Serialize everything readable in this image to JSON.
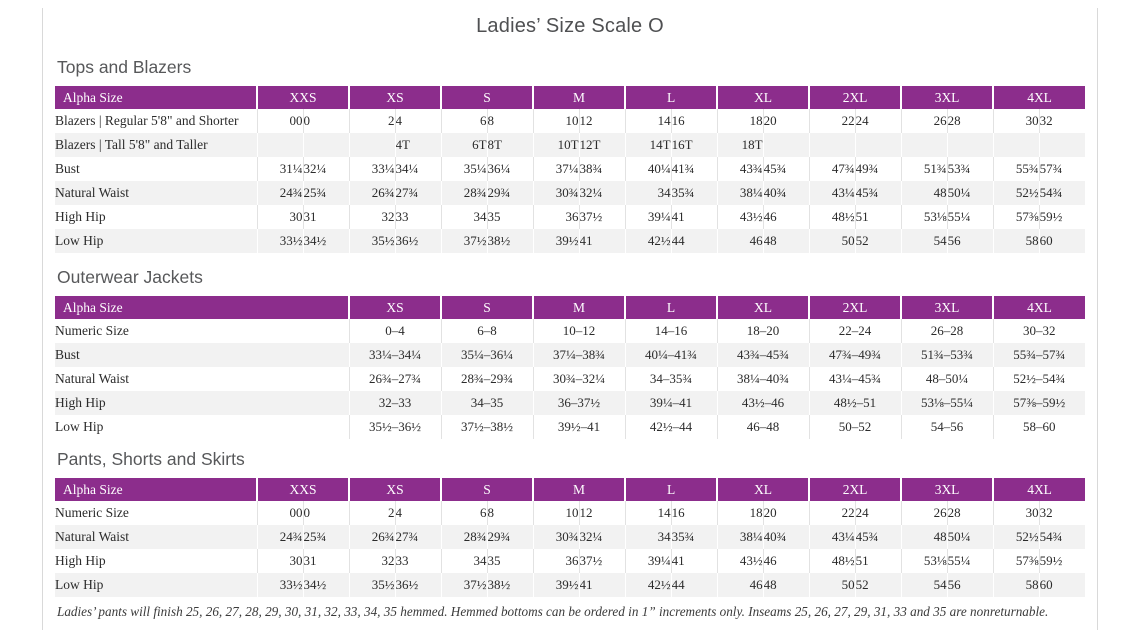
{
  "page": {
    "title": "Ladies’ Size Scale O",
    "footnote": "Ladies’ pants will finish 25, 26, 27, 28, 29, 30, 31, 32, 33, 34, 35 hemmed. Hemmed bottoms can be ordered in 1” increments only. Inseams 25, 26, 27, 29, 31, 33 and 35 are nonreturnable."
  },
  "colors": {
    "header_purple": "#8c2d8c",
    "row_stripe": "#f2f2f2",
    "heading_gray": "#57585a"
  },
  "tables": [
    {
      "heading": "Tops and Blazers",
      "type": "paired",
      "label_header": "Alpha Size",
      "sizes": [
        "XXS",
        "XS",
        "S",
        "M",
        "L",
        "XL",
        "2XL",
        "3XL",
        "4XL"
      ],
      "rows": [
        {
          "label": "Blazers  |  Regular 5'8\" and Shorter",
          "values": [
            "00",
            "0",
            "2",
            "4",
            "6",
            "8",
            "10",
            "12",
            "14",
            "16",
            "18",
            "20",
            "22",
            "24",
            "26",
            "28",
            "30",
            "32"
          ]
        },
        {
          "label": "Blazers  |  Tall 5'8\" and Taller",
          "values": [
            "",
            "",
            "",
            "4T",
            "6T",
            "8T",
            "10T",
            "12T",
            "14T",
            "16T",
            "18T",
            "",
            "",
            "",
            "",
            "",
            "",
            ""
          ]
        },
        {
          "label": "Bust",
          "values": [
            "31¼",
            "32¼",
            "33¼",
            "34¼",
            "35¼",
            "36¼",
            "37¼",
            "38¾",
            "40¼",
            "41¾",
            "43¾",
            "45¾",
            "47¾",
            "49¾",
            "51¾",
            "53¾",
            "55¾",
            "57¾"
          ]
        },
        {
          "label": "Natural Waist",
          "values": [
            "24¾",
            "25¾",
            "26¾",
            "27¾",
            "28¾",
            "29¾",
            "30¾",
            "32¼",
            "34",
            "35¾",
            "38¼",
            "40¾",
            "43¼",
            "45¾",
            "48",
            "50¼",
            "52½",
            "54¾"
          ]
        },
        {
          "label": "High Hip",
          "values": [
            "30",
            "31",
            "32",
            "33",
            "34",
            "35",
            "36",
            "37½",
            "39¼",
            "41",
            "43½",
            "46",
            "48½",
            "51",
            "53⅛",
            "55¼",
            "57⅜",
            "59½"
          ]
        },
        {
          "label": "Low Hip",
          "values": [
            "33½",
            "34½",
            "35½",
            "36½",
            "37½",
            "38½",
            "39½",
            "41",
            "42½",
            "44",
            "46",
            "48",
            "50",
            "52",
            "54",
            "56",
            "58",
            "60"
          ]
        }
      ]
    },
    {
      "heading": "Outerwear Jackets",
      "type": "single",
      "label_header": "Alpha Size",
      "sizes": [
        "XS",
        "S",
        "M",
        "L",
        "XL",
        "2XL",
        "3XL",
        "4XL"
      ],
      "rows": [
        {
          "label": "Numeric Size",
          "values": [
            "0–4",
            "6–8",
            "10–12",
            "14–16",
            "18–20",
            "22–24",
            "26–28",
            "30–32"
          ]
        },
        {
          "label": "Bust",
          "values": [
            "33¼–34¼",
            "35¼–36¼",
            "37¼–38¾",
            "40¼–41¾",
            "43¾–45¾",
            "47¾–49¾",
            "51¾–53¾",
            "55¾–57¾"
          ]
        },
        {
          "label": "Natural Waist",
          "values": [
            "26¾–27¾",
            "28¾–29¾",
            "30¾–32¼",
            "34–35¾",
            "38¼–40¾",
            "43¼–45¾",
            "48–50¼",
            "52½–54¾"
          ]
        },
        {
          "label": "High Hip",
          "values": [
            "32–33",
            "34–35",
            "36–37½",
            "39¼–41",
            "43½–46",
            "48½–51",
            "53⅛–55¼",
            "57⅜–59½"
          ]
        },
        {
          "label": "Low Hip",
          "values": [
            "35½–36½",
            "37½–38½",
            "39½–41",
            "42½–44",
            "46–48",
            "50–52",
            "54–56",
            "58–60"
          ]
        }
      ]
    },
    {
      "heading": "Pants, Shorts and Skirts",
      "type": "paired",
      "label_header": "Alpha Size",
      "sizes": [
        "XXS",
        "XS",
        "S",
        "M",
        "L",
        "XL",
        "2XL",
        "3XL",
        "4XL"
      ],
      "rows": [
        {
          "label": "Numeric Size",
          "values": [
            "00",
            "0",
            "2",
            "4",
            "6",
            "8",
            "10",
            "12",
            "14",
            "16",
            "18",
            "20",
            "22",
            "24",
            "26",
            "28",
            "30",
            "32"
          ]
        },
        {
          "label": "Natural Waist",
          "values": [
            "24¾",
            "25¾",
            "26¾",
            "27¾",
            "28¾",
            "29¾",
            "30¾",
            "32¼",
            "34",
            "35¾",
            "38¼",
            "40¾",
            "43¼",
            "45¾",
            "48",
            "50¼",
            "52½",
            "54¾"
          ]
        },
        {
          "label": "High Hip",
          "values": [
            "30",
            "31",
            "32",
            "33",
            "34",
            "35",
            "36",
            "37½",
            "39¼",
            "41",
            "43½",
            "46",
            "48½",
            "51",
            "53⅛",
            "55¼",
            "57⅜",
            "59½"
          ]
        },
        {
          "label": "Low Hip",
          "values": [
            "33½",
            "34½",
            "35½",
            "36½",
            "37½",
            "38½",
            "39½",
            "41",
            "42½",
            "44",
            "46",
            "48",
            "50",
            "52",
            "54",
            "56",
            "58",
            "60"
          ]
        }
      ]
    }
  ]
}
